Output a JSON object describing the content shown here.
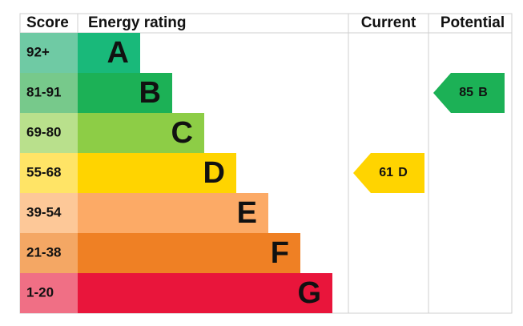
{
  "header": {
    "score": "Score",
    "rating": "Energy rating",
    "current": "Current",
    "potential": "Potential"
  },
  "bands": [
    {
      "score": "92+",
      "letter": "A",
      "color": "#19b97a",
      "score_color": "#6fcaa4"
    },
    {
      "score": "81-91",
      "letter": "B",
      "color": "#1cb156",
      "score_color": "#77c98b"
    },
    {
      "score": "69-80",
      "letter": "C",
      "color": "#8dcd46",
      "score_color": "#b9e08c"
    },
    {
      "score": "55-68",
      "letter": "D",
      "color": "#ffd400",
      "score_color": "#ffe466"
    },
    {
      "score": "39-54",
      "letter": "E",
      "color": "#fcaa66",
      "score_color": "#fdc898"
    },
    {
      "score": "21-38",
      "letter": "F",
      "color": "#ef8024",
      "score_color": "#f4a764"
    },
    {
      "score": "1-20",
      "letter": "G",
      "color": "#e9153b",
      "score_color": "#f06f85"
    }
  ],
  "current": {
    "value": 61,
    "letter": "D",
    "color": "#ffd400"
  },
  "potential": {
    "value": 85,
    "letter": "B",
    "color": "#1cb156"
  }
}
